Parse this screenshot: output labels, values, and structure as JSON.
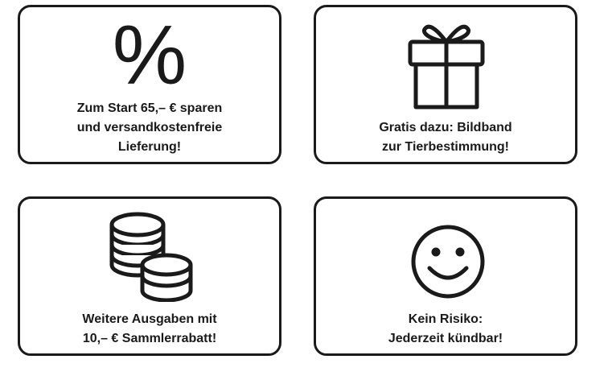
{
  "cards": [
    {
      "icon": "percent-icon",
      "symbol": "%",
      "lines": [
        "Zum Start 65,– € sparen",
        "und versandkostenfreie",
        "Lieferung!"
      ]
    },
    {
      "icon": "gift-icon",
      "lines": [
        "Gratis dazu: Bildband",
        "zur Tierbestimmung!"
      ]
    },
    {
      "icon": "coins-icon",
      "lines": [
        "Weitere Ausgaben mit",
        "10,– € Sammlerrabatt!"
      ]
    },
    {
      "icon": "smiley-icon",
      "lines": [
        "Kein Risiko:",
        "Jederzeit kündbar!"
      ]
    }
  ],
  "colors": {
    "stroke": "#1a1a1a",
    "background": "#ffffff"
  }
}
